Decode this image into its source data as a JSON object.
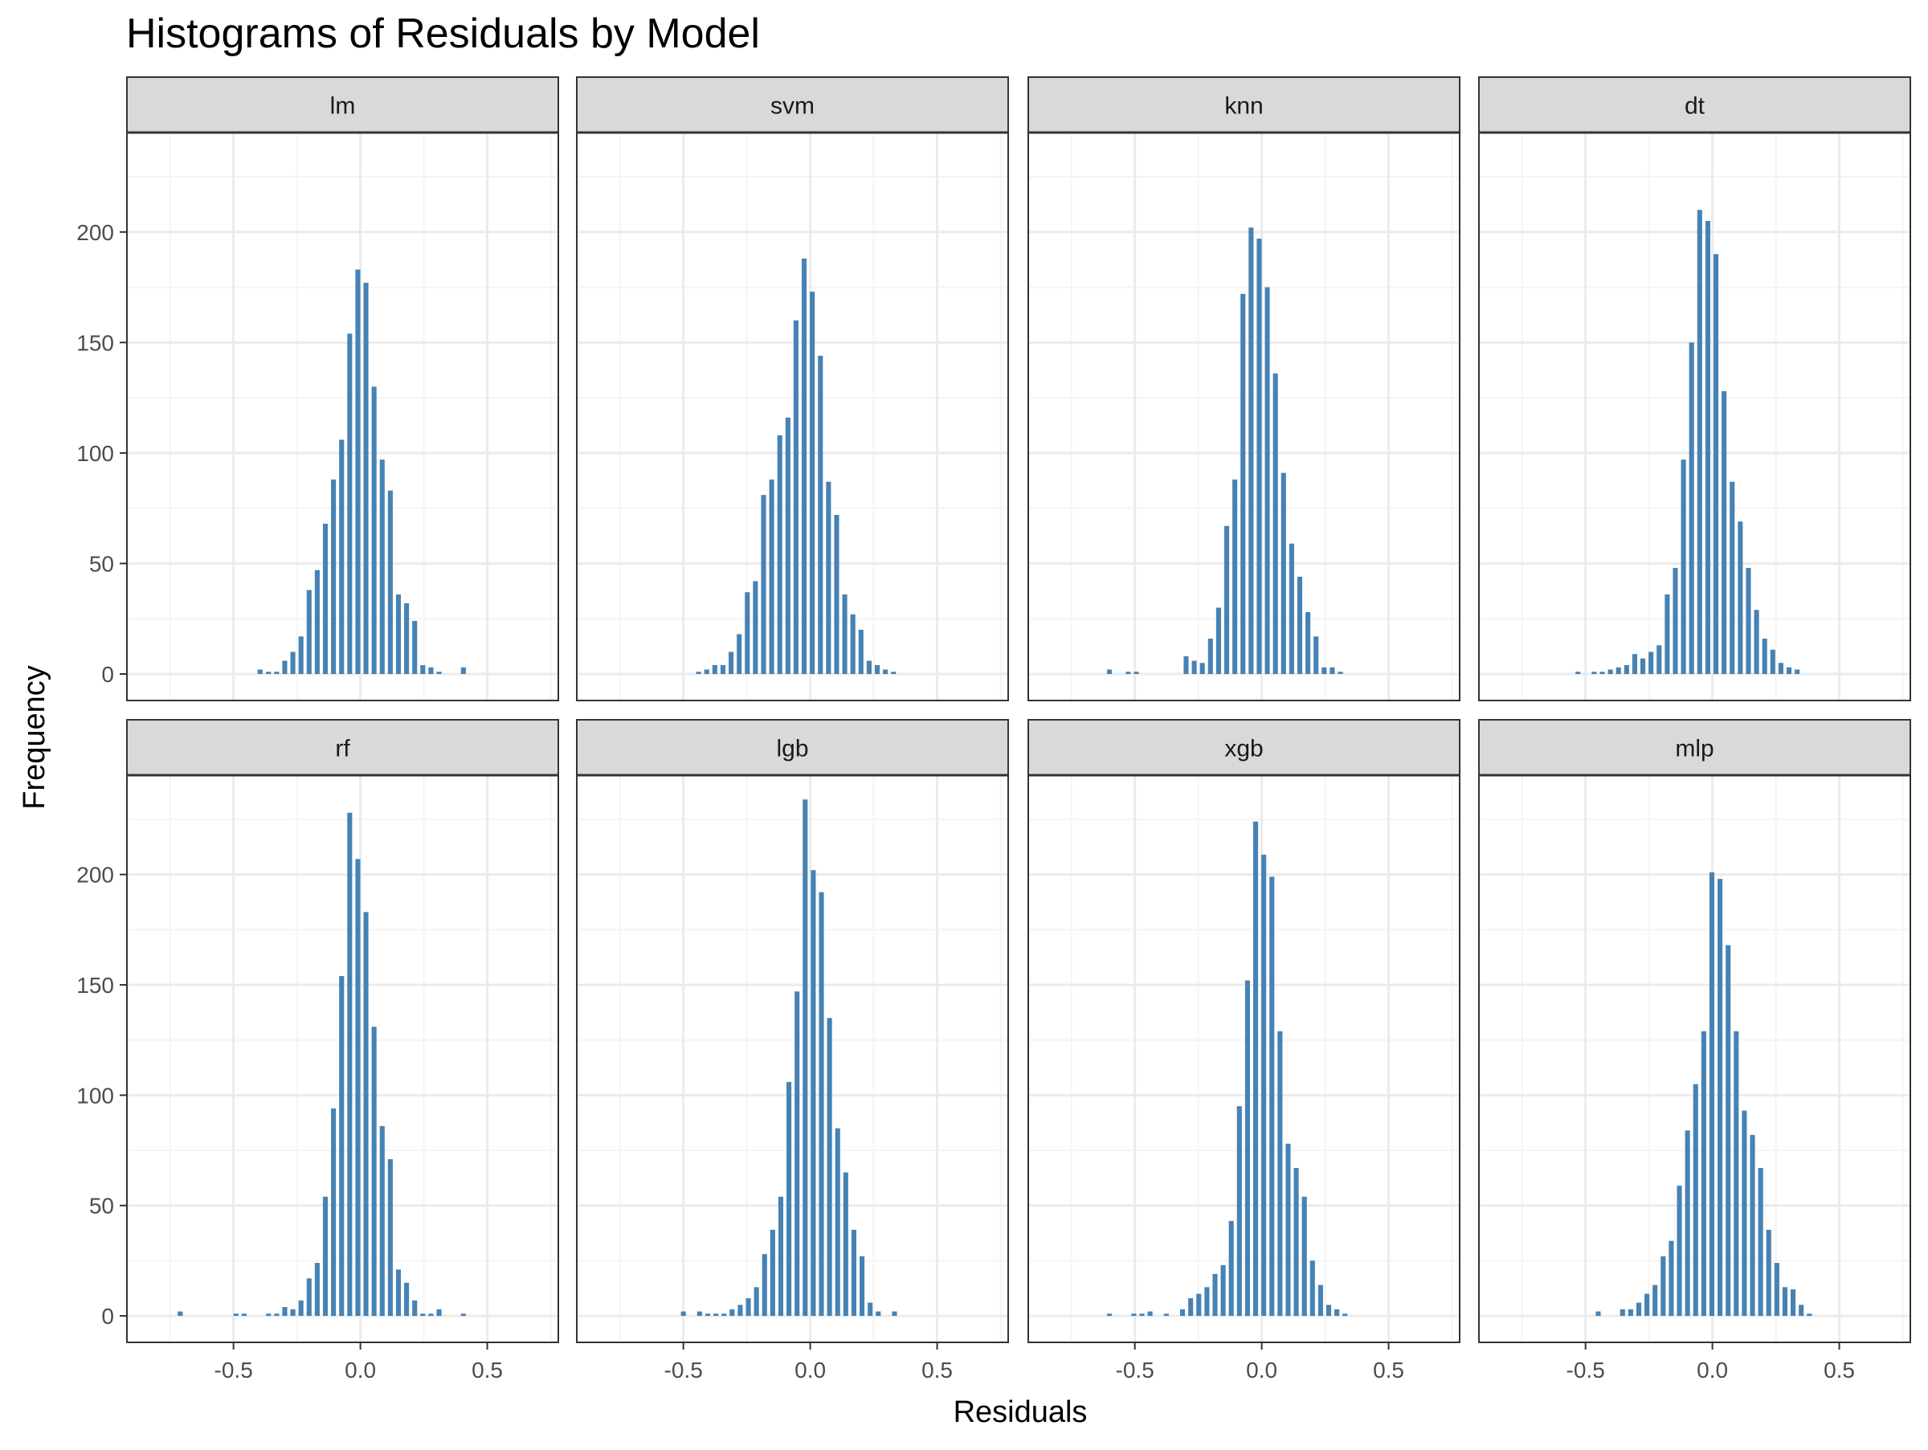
{
  "title": "Histograms of Residuals by Model",
  "xlabel": "Residuals",
  "ylabel": "Frequency",
  "colors": {
    "bar": "#4682B4",
    "strip_fill": "#D9D9D9",
    "panel_border": "#333333",
    "grid_major": "#EBEBEB",
    "grid_minor": "#F4F4F4",
    "tick_text": "#4D4D4D"
  },
  "chart_data": {
    "type": "bar",
    "layout": "faceted histogram grid, 2 rows by 4 columns, shared axes",
    "xlim": [
      -0.92,
      0.78
    ],
    "ylim": [
      -12,
      245
    ],
    "x_ticks": [
      -0.5,
      0.0,
      0.5
    ],
    "x_tick_labels": [
      "-0.5",
      "0.0",
      "0.5"
    ],
    "y_ticks": [
      0,
      50,
      100,
      150,
      200
    ],
    "y_tick_labels": [
      "0",
      "50",
      "100",
      "150",
      "200"
    ],
    "bin_width": 0.032,
    "grid": true,
    "facets": [
      {
        "name": "lm",
        "bins": [
          [
            -0.395,
            2
          ],
          [
            -0.362,
            1
          ],
          [
            -0.33,
            1
          ],
          [
            -0.298,
            6
          ],
          [
            -0.266,
            10
          ],
          [
            -0.234,
            17
          ],
          [
            -0.202,
            38
          ],
          [
            -0.17,
            47
          ],
          [
            -0.138,
            68
          ],
          [
            -0.106,
            88
          ],
          [
            -0.074,
            106
          ],
          [
            -0.042,
            154
          ],
          [
            -0.01,
            183
          ],
          [
            0.022,
            177
          ],
          [
            0.054,
            130
          ],
          [
            0.086,
            97
          ],
          [
            0.118,
            83
          ],
          [
            0.15,
            36
          ],
          [
            0.182,
            32
          ],
          [
            0.214,
            24
          ],
          [
            0.246,
            4
          ],
          [
            0.278,
            3
          ],
          [
            0.31,
            1
          ],
          [
            0.406,
            3
          ]
        ]
      },
      {
        "name": "svm",
        "bins": [
          [
            -0.44,
            1
          ],
          [
            -0.408,
            2
          ],
          [
            -0.376,
            4
          ],
          [
            -0.344,
            4
          ],
          [
            -0.312,
            10
          ],
          [
            -0.28,
            18
          ],
          [
            -0.248,
            37
          ],
          [
            -0.216,
            42
          ],
          [
            -0.184,
            81
          ],
          [
            -0.152,
            88
          ],
          [
            -0.12,
            108
          ],
          [
            -0.088,
            116
          ],
          [
            -0.056,
            160
          ],
          [
            -0.024,
            188
          ],
          [
            0.008,
            173
          ],
          [
            0.04,
            144
          ],
          [
            0.072,
            87
          ],
          [
            0.104,
            72
          ],
          [
            0.136,
            36
          ],
          [
            0.168,
            27
          ],
          [
            0.2,
            20
          ],
          [
            0.232,
            6
          ],
          [
            0.264,
            4
          ],
          [
            0.296,
            2
          ],
          [
            0.328,
            1
          ]
        ]
      },
      {
        "name": "knn",
        "bins": [
          [
            -0.6,
            2
          ],
          [
            -0.526,
            1
          ],
          [
            -0.494,
            1
          ],
          [
            -0.298,
            8
          ],
          [
            -0.266,
            6
          ],
          [
            -0.234,
            5
          ],
          [
            -0.202,
            16
          ],
          [
            -0.17,
            30
          ],
          [
            -0.138,
            67
          ],
          [
            -0.106,
            88
          ],
          [
            -0.074,
            172
          ],
          [
            -0.042,
            202
          ],
          [
            -0.01,
            197
          ],
          [
            0.022,
            175
          ],
          [
            0.054,
            136
          ],
          [
            0.086,
            91
          ],
          [
            0.118,
            59
          ],
          [
            0.15,
            44
          ],
          [
            0.182,
            28
          ],
          [
            0.214,
            17
          ],
          [
            0.246,
            3
          ],
          [
            0.278,
            3
          ],
          [
            0.31,
            1
          ]
        ]
      },
      {
        "name": "dt",
        "bins": [
          [
            -0.53,
            1
          ],
          [
            -0.466,
            1
          ],
          [
            -0.434,
            1
          ],
          [
            -0.402,
            2
          ],
          [
            -0.37,
            3
          ],
          [
            -0.338,
            4
          ],
          [
            -0.306,
            9
          ],
          [
            -0.274,
            7
          ],
          [
            -0.242,
            10
          ],
          [
            -0.21,
            13
          ],
          [
            -0.178,
            36
          ],
          [
            -0.146,
            48
          ],
          [
            -0.114,
            97
          ],
          [
            -0.082,
            150
          ],
          [
            -0.05,
            210
          ],
          [
            -0.018,
            205
          ],
          [
            0.014,
            190
          ],
          [
            0.046,
            128
          ],
          [
            0.078,
            87
          ],
          [
            0.11,
            69
          ],
          [
            0.142,
            48
          ],
          [
            0.174,
            29
          ],
          [
            0.206,
            16
          ],
          [
            0.238,
            11
          ],
          [
            0.27,
            5
          ],
          [
            0.302,
            3
          ],
          [
            0.334,
            2
          ]
        ]
      },
      {
        "name": "rf",
        "bins": [
          [
            -0.71,
            2
          ],
          [
            -0.49,
            1
          ],
          [
            -0.458,
            1
          ],
          [
            -0.362,
            1
          ],
          [
            -0.33,
            1
          ],
          [
            -0.298,
            4
          ],
          [
            -0.266,
            3
          ],
          [
            -0.234,
            7
          ],
          [
            -0.202,
            17
          ],
          [
            -0.17,
            24
          ],
          [
            -0.138,
            54
          ],
          [
            -0.106,
            94
          ],
          [
            -0.074,
            154
          ],
          [
            -0.042,
            228
          ],
          [
            -0.01,
            207
          ],
          [
            0.022,
            183
          ],
          [
            0.054,
            131
          ],
          [
            0.086,
            86
          ],
          [
            0.118,
            71
          ],
          [
            0.15,
            21
          ],
          [
            0.182,
            15
          ],
          [
            0.214,
            7
          ],
          [
            0.246,
            1
          ],
          [
            0.278,
            1
          ],
          [
            0.31,
            3
          ],
          [
            0.406,
            1
          ]
        ]
      },
      {
        "name": "lgb",
        "bins": [
          [
            -0.5,
            2
          ],
          [
            -0.436,
            2
          ],
          [
            -0.404,
            1
          ],
          [
            -0.372,
            1
          ],
          [
            -0.34,
            1
          ],
          [
            -0.308,
            3
          ],
          [
            -0.276,
            5
          ],
          [
            -0.244,
            8
          ],
          [
            -0.212,
            13
          ],
          [
            -0.18,
            28
          ],
          [
            -0.148,
            39
          ],
          [
            -0.116,
            54
          ],
          [
            -0.084,
            106
          ],
          [
            -0.052,
            147
          ],
          [
            -0.02,
            234
          ],
          [
            0.012,
            202
          ],
          [
            0.044,
            192
          ],
          [
            0.076,
            135
          ],
          [
            0.108,
            85
          ],
          [
            0.14,
            65
          ],
          [
            0.172,
            39
          ],
          [
            0.204,
            27
          ],
          [
            0.236,
            6
          ],
          [
            0.268,
            2
          ],
          [
            0.332,
            2
          ]
        ]
      },
      {
        "name": "xgb",
        "bins": [
          [
            -0.6,
            1
          ],
          [
            -0.504,
            1
          ],
          [
            -0.472,
            1
          ],
          [
            -0.44,
            2
          ],
          [
            -0.376,
            1
          ],
          [
            -0.312,
            3
          ],
          [
            -0.28,
            8
          ],
          [
            -0.248,
            10
          ],
          [
            -0.216,
            13
          ],
          [
            -0.184,
            19
          ],
          [
            -0.152,
            23
          ],
          [
            -0.12,
            43
          ],
          [
            -0.088,
            95
          ],
          [
            -0.056,
            152
          ],
          [
            -0.024,
            224
          ],
          [
            0.008,
            209
          ],
          [
            0.04,
            199
          ],
          [
            0.072,
            129
          ],
          [
            0.104,
            78
          ],
          [
            0.136,
            67
          ],
          [
            0.168,
            54
          ],
          [
            0.2,
            25
          ],
          [
            0.232,
            14
          ],
          [
            0.264,
            5
          ],
          [
            0.296,
            3
          ],
          [
            0.328,
            1
          ]
        ]
      },
      {
        "name": "mlp",
        "bins": [
          [
            -0.45,
            2
          ],
          [
            -0.354,
            3
          ],
          [
            -0.322,
            3
          ],
          [
            -0.29,
            6
          ],
          [
            -0.258,
            10
          ],
          [
            -0.226,
            14
          ],
          [
            -0.194,
            27
          ],
          [
            -0.162,
            34
          ],
          [
            -0.13,
            59
          ],
          [
            -0.098,
            84
          ],
          [
            -0.066,
            105
          ],
          [
            -0.034,
            129
          ],
          [
            -0.002,
            201
          ],
          [
            0.03,
            198
          ],
          [
            0.062,
            168
          ],
          [
            0.094,
            129
          ],
          [
            0.126,
            93
          ],
          [
            0.158,
            82
          ],
          [
            0.19,
            67
          ],
          [
            0.222,
            39
          ],
          [
            0.254,
            24
          ],
          [
            0.286,
            13
          ],
          [
            0.318,
            12
          ],
          [
            0.35,
            5
          ],
          [
            0.382,
            1
          ]
        ]
      }
    ]
  }
}
